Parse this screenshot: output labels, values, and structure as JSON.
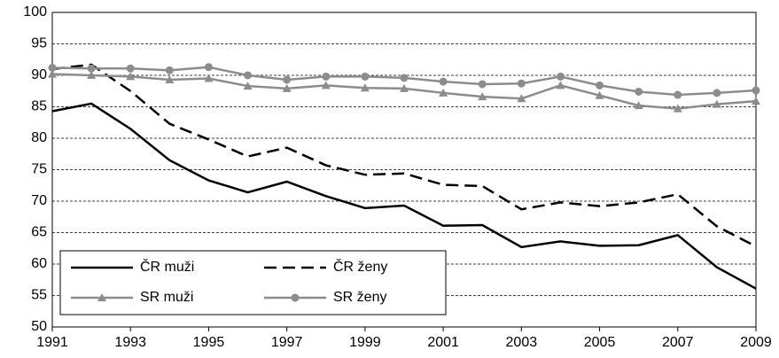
{
  "chart_data": {
    "type": "line",
    "x": [
      1991,
      1992,
      1993,
      1994,
      1995,
      1996,
      1997,
      1998,
      1999,
      2000,
      2001,
      2002,
      2003,
      2004,
      2005,
      2006,
      2007,
      2008,
      2009
    ],
    "xlim": [
      1991,
      2009
    ],
    "xticks": [
      1991,
      1993,
      1995,
      1997,
      1999,
      2001,
      2003,
      2005,
      2007,
      2009
    ],
    "ylim": [
      50,
      100
    ],
    "yticks": [
      50,
      55,
      60,
      65,
      70,
      75,
      80,
      85,
      90,
      95,
      100
    ],
    "grid": true,
    "legend": "lower left",
    "series": [
      {
        "name": "ČR muži",
        "color": "#000000",
        "dash": false,
        "marker": null,
        "values": [
          84.3,
          85.5,
          81.5,
          76.5,
          73.3,
          71.4,
          73.1,
          70.8,
          68.9,
          69.3,
          66.1,
          66.2,
          62.7,
          63.6,
          62.9,
          63.0,
          64.6,
          59.5,
          56.1
        ]
      },
      {
        "name": "ČR ženy",
        "color": "#000000",
        "dash": true,
        "marker": null,
        "values": [
          91.0,
          91.7,
          87.5,
          82.3,
          79.8,
          77.1,
          78.5,
          75.7,
          74.2,
          74.4,
          72.6,
          72.4,
          68.7,
          69.8,
          69.2,
          69.8,
          71.1,
          66.0,
          62.8
        ]
      },
      {
        "name": "SR muži",
        "color": "#8c8c8c",
        "dash": false,
        "marker": "triangle",
        "values": [
          90.2,
          90.0,
          89.8,
          89.3,
          89.5,
          88.3,
          87.9,
          88.4,
          88.0,
          87.9,
          87.2,
          86.6,
          86.3,
          88.4,
          86.8,
          85.2,
          84.7,
          85.4,
          85.9
        ]
      },
      {
        "name": "SR ženy",
        "color": "#8c8c8c",
        "dash": false,
        "marker": "circle",
        "values": [
          91.2,
          91.1,
          91.1,
          90.8,
          91.3,
          90.0,
          89.3,
          89.8,
          89.8,
          89.6,
          89.0,
          88.6,
          88.7,
          89.8,
          88.4,
          87.4,
          86.9,
          87.2,
          87.6
        ]
      }
    ]
  }
}
